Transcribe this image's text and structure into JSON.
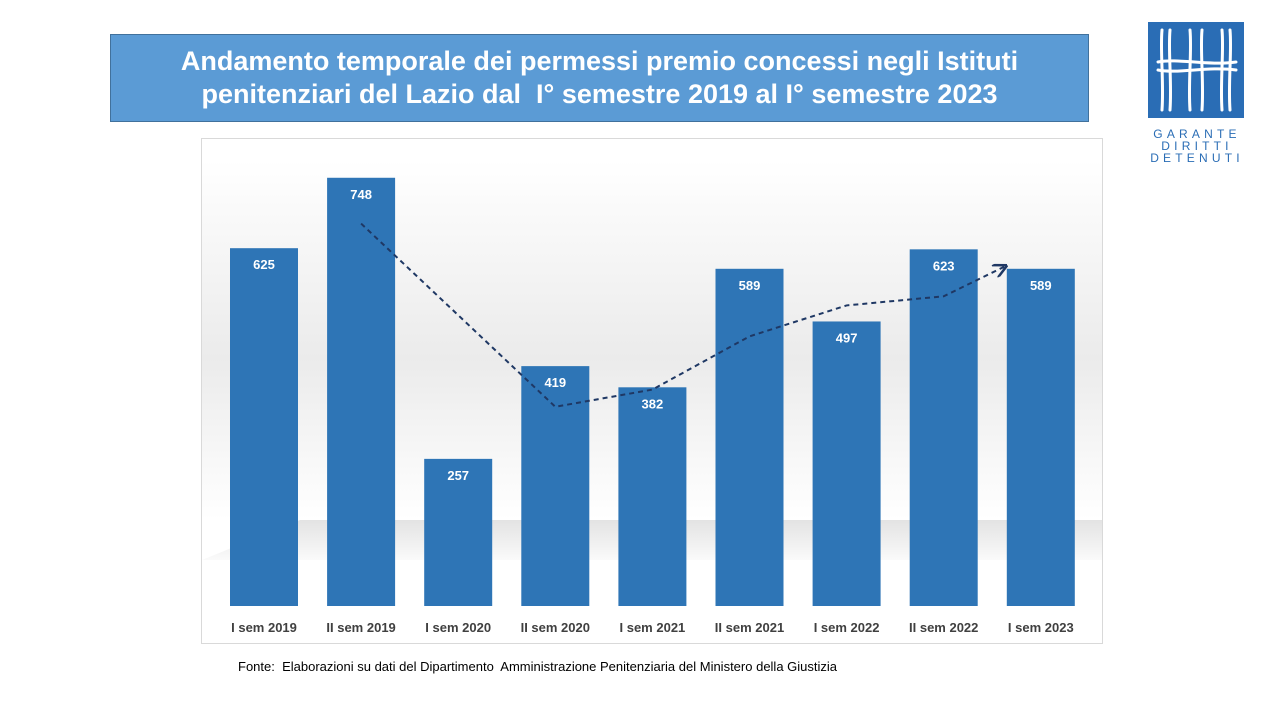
{
  "title": {
    "line1": "Andamento temporale dei permessi premio concessi negli Istituti",
    "line2": "penitenziari del Lazio dal  I° semestre 2019 al I° semestre 2023"
  },
  "logo": {
    "line1": "GARANTE",
    "line2": "DIRITTI",
    "line3": "DETENUTI",
    "color": "#2a6db5"
  },
  "source": "Fonte:  Elaborazioni su dati del Dipartimento  Amministrazione Penitenziaria del Ministero della Giustizia",
  "chart_data": {
    "type": "bar",
    "categories": [
      "I sem 2019",
      "II sem 2019",
      "I sem 2020",
      "II sem 2020",
      "I sem 2021",
      "II sem 2021",
      "I sem 2022",
      "II sem 2022",
      "I sem 2023"
    ],
    "values": [
      625,
      748,
      257,
      419,
      382,
      589,
      497,
      623,
      589
    ],
    "data_labels": [
      "625",
      "748",
      "257",
      "419",
      "382",
      "589",
      "497",
      "623",
      "589"
    ],
    "trendline": {
      "style": "dashed-arrow",
      "color": "#1f3864",
      "points": [
        {
          "category": "II sem 2019",
          "value": 668
        },
        {
          "category": "II sem 2020",
          "value": 348
        },
        {
          "category": "I sem 2021",
          "value": 378
        },
        {
          "category": "II sem 2021",
          "value": 471
        },
        {
          "category": "I sem 2022",
          "value": 525
        },
        {
          "category": "II sem 2022",
          "value": 541
        },
        {
          "category": "I sem 2023",
          "value": 593
        }
      ]
    },
    "ylim": [
      0,
      800
    ],
    "bar_color": "#2e75b6",
    "label_color": "#ffffff",
    "grid": false,
    "legend": "none",
    "xlabel": "",
    "ylabel": ""
  }
}
